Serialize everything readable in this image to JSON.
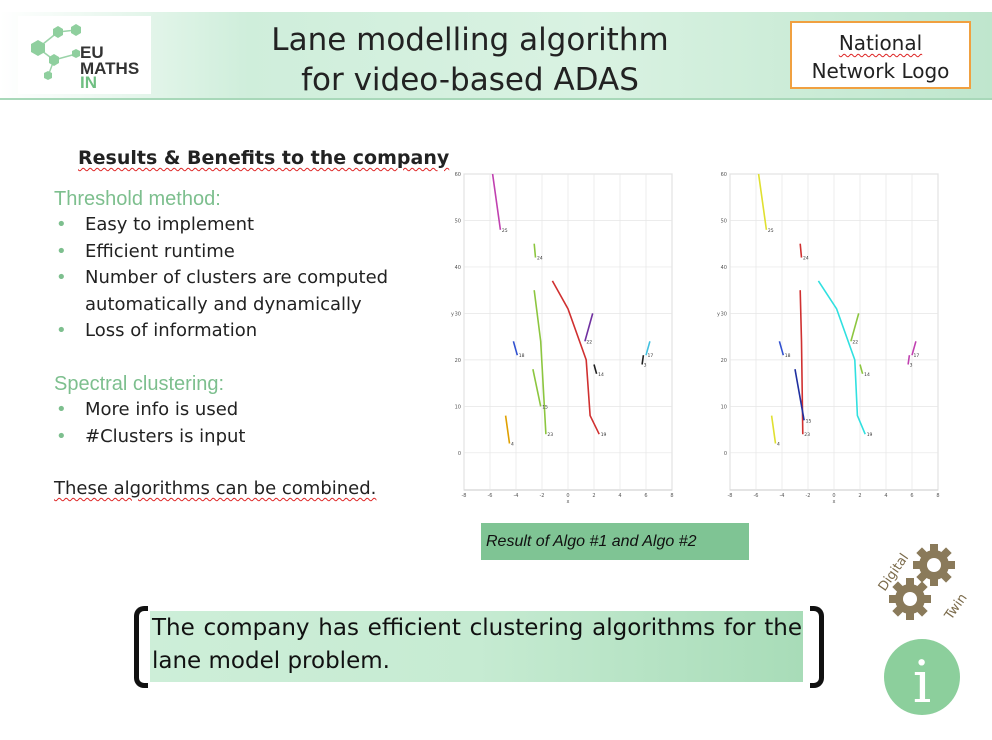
{
  "header": {
    "logo_text": [
      "EU",
      "MATHS",
      "IN"
    ],
    "title_lines": [
      "Lane modelling algorithm",
      "for video-based ADAS"
    ],
    "network_logo_lines": [
      "National",
      "Network Logo"
    ]
  },
  "content": {
    "heading": "Results & Benefits to the company",
    "threshold": {
      "title": "Threshold method:",
      "items": [
        "Easy to implement",
        "Efficient runtime",
        "Number of clusters are computed automatically and dynamically",
        "Loss of information"
      ]
    },
    "spectral": {
      "title": "Spectral clustering:",
      "items": [
        "More info is used",
        "#Clusters is input"
      ]
    },
    "combined": "These algorithms can be combined."
  },
  "plots": {
    "caption": "Result of Algo #1 and Algo #2",
    "y_axis_label": "y",
    "x_axis_label": "x"
  },
  "chart_data": [
    {
      "type": "line",
      "title": "",
      "xlabel": "x",
      "ylabel": "y",
      "xlim": [
        -8,
        8
      ],
      "ylim": [
        -8,
        60
      ],
      "x_ticks": [
        -8,
        -6,
        -4,
        -2,
        0,
        2,
        4,
        6,
        8
      ],
      "y_ticks": [
        0,
        10,
        20,
        30,
        40,
        50,
        60
      ],
      "series": [
        {
          "name": "25",
          "color": "#c040b0",
          "points": [
            [
              -5.8,
              60
            ],
            [
              -5.2,
              48
            ]
          ]
        },
        {
          "name": "24",
          "color": "#8cc63f",
          "points": [
            [
              -2.6,
              45
            ],
            [
              -2.5,
              42
            ]
          ]
        },
        {
          "name": "23",
          "color": "#8cc63f",
          "points": [
            [
              -2.6,
              35
            ],
            [
              -2.1,
              24
            ],
            [
              -1.7,
              4
            ]
          ]
        },
        {
          "name": "15",
          "color": "#8cc63f",
          "points": [
            [
              -2.7,
              18
            ],
            [
              -2.1,
              10
            ]
          ]
        },
        {
          "name": "18",
          "color": "#3050d0",
          "points": [
            [
              -4.2,
              24
            ],
            [
              -3.9,
              21
            ]
          ]
        },
        {
          "name": "4",
          "color": "#e0a000",
          "points": [
            [
              -4.8,
              8
            ],
            [
              -4.5,
              2
            ]
          ]
        },
        {
          "name": "19",
          "color": "#d03030",
          "points": [
            [
              -1.2,
              37
            ],
            [
              0.0,
              31
            ],
            [
              1.4,
              20
            ],
            [
              1.7,
              8
            ],
            [
              2.4,
              4
            ]
          ]
        },
        {
          "name": "22",
          "color": "#7030a0",
          "points": [
            [
              1.9,
              30
            ],
            [
              1.3,
              24
            ]
          ]
        },
        {
          "name": "17",
          "color": "#40c0e0",
          "points": [
            [
              6.3,
              24
            ],
            [
              6.0,
              21
            ]
          ]
        },
        {
          "name": "3",
          "color": "#202020",
          "points": [
            [
              5.8,
              21
            ],
            [
              5.7,
              19
            ]
          ]
        },
        {
          "name": "14",
          "color": "#202020",
          "points": [
            [
              2.0,
              19
            ],
            [
              2.2,
              17
            ]
          ]
        }
      ]
    },
    {
      "type": "line",
      "title": "",
      "xlabel": "x",
      "ylabel": "y",
      "xlim": [
        -8,
        8
      ],
      "ylim": [
        -8,
        60
      ],
      "x_ticks": [
        -8,
        -6,
        -4,
        -2,
        0,
        2,
        4,
        6,
        8
      ],
      "y_ticks": [
        0,
        10,
        20,
        30,
        40,
        50,
        60
      ],
      "series": [
        {
          "name": "25",
          "color": "#e0e030",
          "points": [
            [
              -5.8,
              60
            ],
            [
              -5.2,
              48
            ]
          ]
        },
        {
          "name": "24",
          "color": "#d03030",
          "points": [
            [
              -2.6,
              45
            ],
            [
              -2.5,
              42
            ]
          ]
        },
        {
          "name": "23",
          "color": "#d03030",
          "points": [
            [
              -2.6,
              35
            ],
            [
              -2.5,
              24
            ],
            [
              -2.4,
              4
            ]
          ]
        },
        {
          "name": "15",
          "color": "#2030a0",
          "points": [
            [
              -3.0,
              18
            ],
            [
              -2.3,
              7
            ]
          ]
        },
        {
          "name": "18",
          "color": "#3050d0",
          "points": [
            [
              -4.2,
              24
            ],
            [
              -3.9,
              21
            ]
          ]
        },
        {
          "name": "4",
          "color": "#e0e030",
          "points": [
            [
              -4.8,
              8
            ],
            [
              -4.5,
              2
            ]
          ]
        },
        {
          "name": "19",
          "color": "#30e0e0",
          "points": [
            [
              -1.2,
              37
            ],
            [
              0.2,
              31
            ],
            [
              1.6,
              20
            ],
            [
              1.8,
              8
            ],
            [
              2.4,
              4
            ]
          ]
        },
        {
          "name": "22",
          "color": "#8cc63f",
          "points": [
            [
              1.9,
              30
            ],
            [
              1.3,
              24
            ]
          ]
        },
        {
          "name": "17",
          "color": "#c040b0",
          "points": [
            [
              6.3,
              24
            ],
            [
              6.0,
              21
            ]
          ]
        },
        {
          "name": "3",
          "color": "#c040b0",
          "points": [
            [
              5.8,
              21
            ],
            [
              5.7,
              19
            ]
          ]
        },
        {
          "name": "14",
          "color": "#8cc63f",
          "points": [
            [
              2.0,
              19
            ],
            [
              2.2,
              17
            ]
          ]
        }
      ]
    }
  ],
  "summary": {
    "text": "The company has efficient clustering algorithms for the lane model problem."
  },
  "badges": {
    "digital_twin": [
      "Digital",
      "Twin"
    ],
    "info_symbol": "i"
  },
  "colors": {
    "accent_green": "#7dbf8e",
    "header_green": "#cfeedb",
    "network_border": "#f0a040"
  }
}
